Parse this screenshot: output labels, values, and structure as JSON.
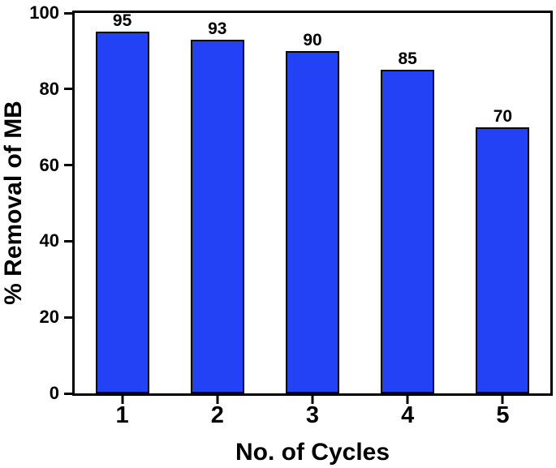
{
  "chart_data": {
    "type": "bar",
    "title": "",
    "xlabel": "No. of Cycles",
    "ylabel": "% Removal of MB",
    "categories": [
      "1",
      "2",
      "3",
      "4",
      "5"
    ],
    "values": [
      95,
      93,
      90,
      85,
      70
    ],
    "bar_labels": [
      "95",
      "93",
      "90",
      "85",
      "70"
    ],
    "ylim": [
      0,
      100
    ],
    "yticks": [
      0,
      20,
      40,
      60,
      80,
      100
    ],
    "grid": false,
    "legend_position": "none",
    "bar_color": "#2341f5",
    "bar_border_color": "#000000",
    "axis_color": "#000000",
    "text_color": "#000000",
    "background_color": "#ffffff"
  }
}
